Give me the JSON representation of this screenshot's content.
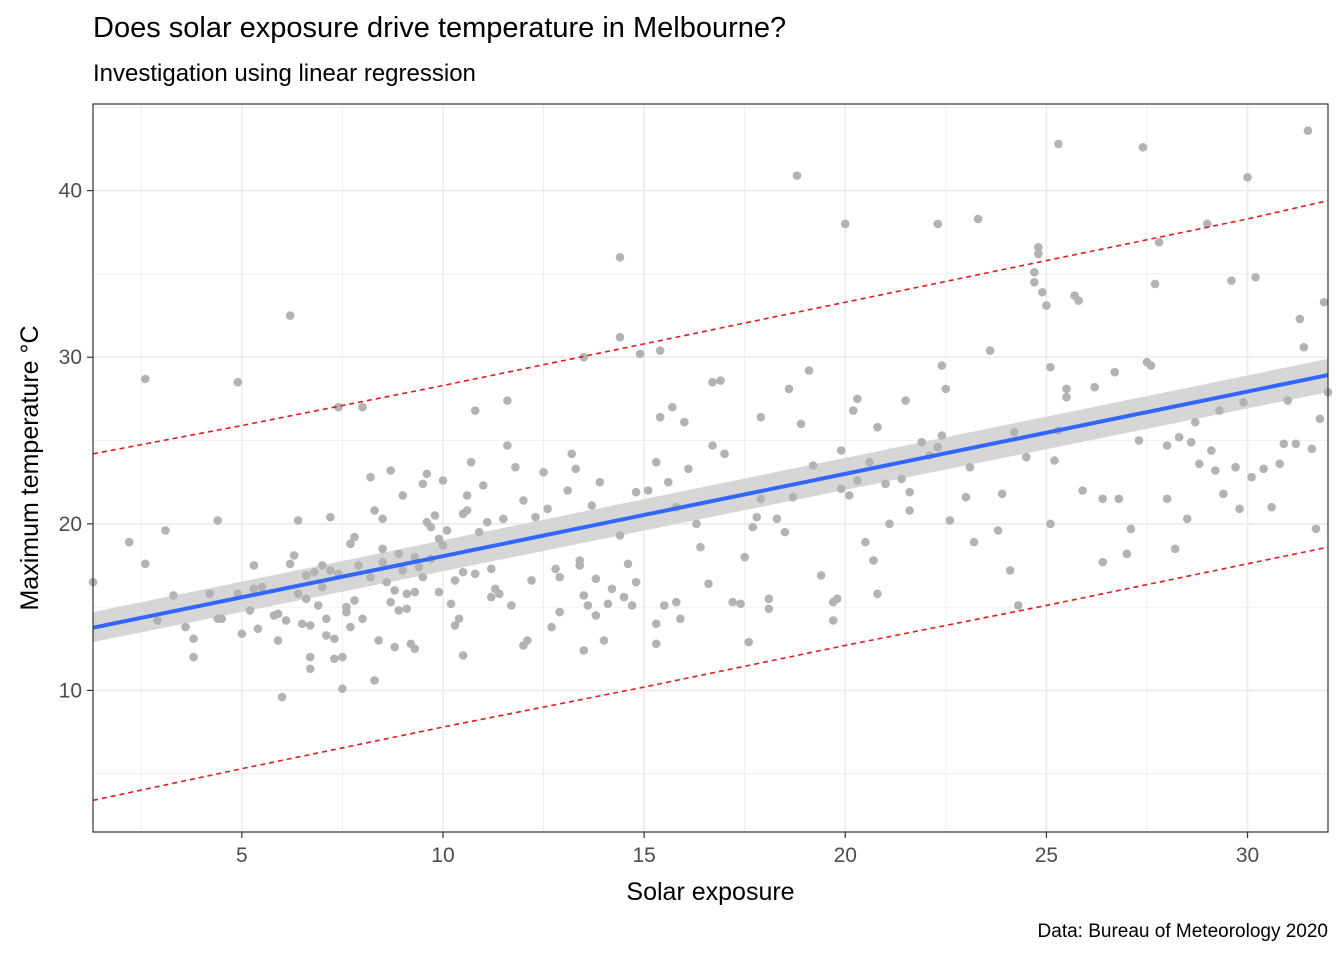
{
  "chart_data": {
    "type": "scatter",
    "title": "Does solar exposure drive temperature in Melbourne?",
    "subtitle": "Investigation using linear regression",
    "caption": "Data: Bureau of Meteorology 2020",
    "xlabel": "Solar exposure",
    "ylabel": "Maximum temperature °C",
    "xlim": [
      1.3,
      32.0
    ],
    "ylim": [
      1.5,
      45.2
    ],
    "xticks": [
      5,
      10,
      15,
      20,
      25,
      30
    ],
    "yticks": [
      10,
      20,
      30,
      40
    ],
    "grid": true,
    "colors": {
      "points": "#b3b3b3",
      "fit_line": "#3366ff",
      "confidence_band": "#d6d6d6",
      "prediction_interval": "#e41a1c",
      "grid": "#ebebeb",
      "panel_border": "#333333"
    },
    "regression": {
      "method": "linear",
      "intercept": 13.12,
      "slope": 0.494,
      "ci_at_xmin": [
        12.9,
        14.7
      ],
      "ci_at_xmax": [
        27.9,
        29.9
      ],
      "prediction_lower": [
        [
          1.3,
          3.4
        ],
        [
          5,
          5.3
        ],
        [
          10,
          7.8
        ],
        [
          15,
          10.2
        ],
        [
          20,
          12.7
        ],
        [
          25,
          15.1
        ],
        [
          30,
          17.6
        ],
        [
          32,
          18.6
        ]
      ],
      "prediction_upper": [
        [
          1.3,
          24.2
        ],
        [
          5,
          25.9
        ],
        [
          10,
          28.3
        ],
        [
          15,
          30.8
        ],
        [
          20,
          33.3
        ],
        [
          25,
          35.8
        ],
        [
          30,
          38.3
        ],
        [
          32,
          39.4
        ]
      ]
    },
    "points": [
      [
        1.3,
        16.5
      ],
      [
        2.2,
        18.9
      ],
      [
        2.6,
        17.6
      ],
      [
        2.6,
        28.7
      ],
      [
        2.9,
        14.2
      ],
      [
        3.1,
        19.6
      ],
      [
        3.3,
        15.7
      ],
      [
        3.6,
        13.8
      ],
      [
        3.8,
        13.1
      ],
      [
        3.8,
        12.0
      ],
      [
        4.2,
        15.8
      ],
      [
        4.4,
        20.2
      ],
      [
        4.5,
        14.3
      ],
      [
        4.9,
        15.8
      ],
      [
        4.9,
        28.5
      ],
      [
        5.0,
        13.4
      ],
      [
        5.2,
        14.8
      ],
      [
        5.3,
        16.1
      ],
      [
        5.3,
        17.5
      ],
      [
        5.4,
        13.7
      ],
      [
        5.5,
        16.2
      ],
      [
        5.8,
        14.5
      ],
      [
        5.9,
        13.0
      ],
      [
        5.9,
        14.6
      ],
      [
        6.0,
        9.6
      ],
      [
        6.1,
        14.2
      ],
      [
        6.2,
        17.6
      ],
      [
        6.2,
        32.5
      ],
      [
        6.3,
        18.1
      ],
      [
        6.4,
        20.2
      ],
      [
        6.4,
        15.8
      ],
      [
        6.5,
        14.0
      ],
      [
        6.6,
        16.9
      ],
      [
        6.6,
        15.5
      ],
      [
        6.7,
        11.3
      ],
      [
        6.7,
        13.9
      ],
      [
        6.8,
        17.1
      ],
      [
        6.9,
        15.1
      ],
      [
        7.0,
        17.5
      ],
      [
        7.0,
        16.2
      ],
      [
        7.1,
        13.3
      ],
      [
        7.1,
        14.3
      ],
      [
        7.2,
        20.4
      ],
      [
        7.2,
        17.2
      ],
      [
        7.3,
        11.9
      ],
      [
        7.3,
        13.1
      ],
      [
        7.4,
        17.0
      ],
      [
        7.5,
        12.0
      ],
      [
        7.5,
        10.1
      ],
      [
        7.6,
        15.0
      ],
      [
        7.6,
        14.7
      ],
      [
        7.7,
        18.8
      ],
      [
        7.7,
        13.8
      ],
      [
        7.8,
        15.4
      ],
      [
        7.8,
        19.2
      ],
      [
        7.9,
        17.5
      ],
      [
        8.0,
        14.3
      ],
      [
        8.0,
        27.0
      ],
      [
        8.2,
        22.8
      ],
      [
        8.2,
        16.8
      ],
      [
        8.3,
        20.8
      ],
      [
        8.3,
        10.6
      ],
      [
        8.4,
        13.0
      ],
      [
        8.5,
        18.5
      ],
      [
        8.5,
        17.7
      ],
      [
        8.6,
        16.5
      ],
      [
        8.7,
        23.2
      ],
      [
        8.7,
        15.3
      ],
      [
        8.8,
        16.0
      ],
      [
        8.8,
        12.6
      ],
      [
        8.9,
        18.2
      ],
      [
        8.9,
        14.8
      ],
      [
        9.0,
        21.7
      ],
      [
        9.0,
        17.2
      ],
      [
        9.1,
        15.8
      ],
      [
        9.1,
        14.9
      ],
      [
        9.2,
        12.8
      ],
      [
        9.3,
        12.5
      ],
      [
        9.3,
        18.0
      ],
      [
        9.4,
        17.4
      ],
      [
        9.5,
        16.8
      ],
      [
        9.5,
        22.4
      ],
      [
        9.6,
        20.1
      ],
      [
        9.6,
        23.0
      ],
      [
        9.7,
        17.9
      ],
      [
        9.7,
        19.8
      ],
      [
        9.8,
        20.5
      ],
      [
        9.9,
        15.9
      ],
      [
        10.0,
        22.6
      ],
      [
        10.0,
        18.7
      ],
      [
        10.1,
        19.6
      ],
      [
        10.2,
        15.2
      ],
      [
        10.3,
        16.6
      ],
      [
        10.3,
        13.9
      ],
      [
        10.4,
        14.3
      ],
      [
        10.5,
        12.1
      ],
      [
        10.5,
        17.1
      ],
      [
        10.6,
        21.7
      ],
      [
        10.6,
        20.8
      ],
      [
        10.7,
        23.7
      ],
      [
        10.8,
        17.0
      ],
      [
        10.8,
        26.8
      ],
      [
        10.9,
        19.5
      ],
      [
        11.0,
        22.3
      ],
      [
        11.1,
        20.1
      ],
      [
        11.2,
        15.6
      ],
      [
        11.3,
        16.1
      ],
      [
        11.4,
        15.8
      ],
      [
        11.5,
        20.3
      ],
      [
        11.6,
        24.7
      ],
      [
        11.6,
        27.4
      ],
      [
        11.7,
        15.1
      ],
      [
        11.8,
        23.4
      ],
      [
        12.0,
        12.7
      ],
      [
        12.1,
        13.0
      ],
      [
        12.2,
        16.6
      ],
      [
        12.3,
        20.4
      ],
      [
        12.5,
        23.1
      ],
      [
        12.6,
        20.9
      ],
      [
        12.7,
        13.8
      ],
      [
        12.8,
        17.3
      ],
      [
        12.9,
        14.7
      ],
      [
        13.1,
        22.0
      ],
      [
        13.2,
        24.2
      ],
      [
        13.3,
        23.3
      ],
      [
        13.4,
        17.5
      ],
      [
        13.4,
        17.8
      ],
      [
        13.5,
        15.7
      ],
      [
        13.5,
        12.4
      ],
      [
        13.5,
        30.0
      ],
      [
        13.6,
        15.1
      ],
      [
        13.7,
        21.1
      ],
      [
        13.8,
        14.5
      ],
      [
        13.8,
        16.7
      ],
      [
        14.0,
        13.0
      ],
      [
        14.1,
        15.2
      ],
      [
        14.2,
        16.1
      ],
      [
        14.4,
        19.3
      ],
      [
        14.4,
        31.2
      ],
      [
        14.5,
        15.6
      ],
      [
        14.6,
        17.6
      ],
      [
        14.7,
        15.1
      ],
      [
        14.8,
        16.5
      ],
      [
        14.8,
        21.9
      ],
      [
        14.9,
        30.2
      ],
      [
        15.1,
        22.0
      ],
      [
        15.3,
        12.8
      ],
      [
        15.3,
        14.0
      ],
      [
        15.4,
        30.4
      ],
      [
        15.4,
        26.4
      ],
      [
        15.5,
        15.1
      ],
      [
        15.6,
        22.5
      ],
      [
        15.7,
        27.0
      ],
      [
        15.8,
        21.0
      ],
      [
        15.9,
        14.3
      ],
      [
        16.0,
        26.1
      ],
      [
        16.4,
        18.6
      ],
      [
        16.6,
        16.4
      ],
      [
        16.7,
        28.5
      ],
      [
        16.7,
        24.7
      ],
      [
        16.9,
        28.6
      ],
      [
        17.0,
        24.2
      ],
      [
        17.2,
        15.3
      ],
      [
        17.4,
        15.2
      ],
      [
        17.5,
        18.0
      ],
      [
        17.7,
        19.8
      ],
      [
        17.8,
        20.4
      ],
      [
        17.9,
        26.4
      ],
      [
        17.9,
        21.5
      ],
      [
        18.1,
        14.9
      ],
      [
        18.1,
        15.5
      ],
      [
        18.3,
        20.3
      ],
      [
        18.5,
        19.5
      ],
      [
        18.7,
        21.6
      ],
      [
        18.9,
        26.0
      ],
      [
        19.1,
        29.2
      ],
      [
        19.2,
        23.5
      ],
      [
        19.7,
        15.3
      ],
      [
        19.7,
        14.2
      ],
      [
        19.8,
        15.5
      ],
      [
        19.9,
        22.1
      ],
      [
        19.9,
        24.4
      ],
      [
        20.1,
        21.7
      ],
      [
        20.2,
        26.8
      ],
      [
        20.3,
        27.5
      ],
      [
        20.3,
        22.6
      ],
      [
        20.5,
        18.9
      ],
      [
        20.6,
        23.7
      ],
      [
        20.7,
        17.8
      ],
      [
        20.8,
        15.8
      ],
      [
        20.8,
        25.8
      ],
      [
        21.0,
        22.4
      ],
      [
        21.1,
        20.0
      ],
      [
        21.4,
        22.7
      ],
      [
        21.5,
        27.4
      ],
      [
        21.6,
        21.9
      ],
      [
        21.6,
        20.8
      ],
      [
        22.1,
        24.1
      ],
      [
        22.3,
        24.6
      ],
      [
        22.4,
        25.3
      ],
      [
        22.4,
        29.5
      ],
      [
        22.5,
        28.1
      ],
      [
        22.6,
        20.2
      ],
      [
        23.0,
        21.6
      ],
      [
        23.1,
        23.4
      ],
      [
        23.2,
        18.9
      ],
      [
        23.3,
        38.3
      ],
      [
        23.6,
        30.4
      ],
      [
        23.8,
        19.6
      ],
      [
        23.9,
        21.8
      ],
      [
        24.1,
        17.2
      ],
      [
        24.3,
        15.1
      ],
      [
        24.5,
        24.0
      ],
      [
        24.7,
        34.5
      ],
      [
        24.7,
        35.1
      ],
      [
        24.8,
        36.6
      ],
      [
        24.8,
        36.2
      ],
      [
        24.9,
        33.9
      ],
      [
        25.0,
        33.1
      ],
      [
        25.1,
        29.4
      ],
      [
        25.1,
        20.0
      ],
      [
        25.2,
        23.8
      ],
      [
        25.3,
        25.6
      ],
      [
        25.5,
        27.6
      ],
      [
        25.5,
        28.1
      ],
      [
        25.7,
        33.7
      ],
      [
        25.8,
        33.4
      ],
      [
        25.9,
        22.0
      ],
      [
        26.2,
        28.2
      ],
      [
        26.4,
        21.5
      ],
      [
        26.7,
        29.1
      ],
      [
        26.8,
        21.5
      ],
      [
        27.0,
        18.2
      ],
      [
        27.1,
        19.7
      ],
      [
        27.3,
        25.0
      ],
      [
        27.4,
        42.6
      ],
      [
        27.5,
        29.7
      ],
      [
        27.6,
        29.5
      ],
      [
        27.7,
        34.4
      ],
      [
        27.8,
        36.9
      ],
      [
        28.0,
        24.7
      ],
      [
        28.0,
        21.5
      ],
      [
        28.2,
        18.5
      ],
      [
        28.3,
        25.2
      ],
      [
        28.5,
        20.3
      ],
      [
        28.6,
        24.9
      ],
      [
        28.8,
        23.6
      ],
      [
        29.0,
        38.0
      ],
      [
        29.1,
        24.4
      ],
      [
        29.2,
        23.2
      ],
      [
        29.3,
        26.8
      ],
      [
        29.4,
        21.8
      ],
      [
        29.6,
        34.6
      ],
      [
        29.7,
        23.4
      ],
      [
        29.8,
        20.9
      ],
      [
        29.9,
        27.3
      ],
      [
        30.0,
        40.8
      ],
      [
        30.1,
        22.8
      ],
      [
        30.2,
        34.8
      ],
      [
        30.4,
        23.3
      ],
      [
        30.6,
        21.0
      ],
      [
        30.8,
        23.6
      ],
      [
        31.0,
        27.4
      ],
      [
        31.2,
        24.8
      ],
      [
        31.3,
        32.3
      ],
      [
        31.4,
        30.6
      ],
      [
        31.5,
        43.6
      ],
      [
        31.6,
        24.5
      ],
      [
        31.7,
        19.7
      ],
      [
        31.8,
        26.3
      ],
      [
        31.9,
        33.3
      ],
      [
        32.0,
        27.9
      ],
      [
        4.4,
        14.3
      ],
      [
        6.7,
        12.0
      ],
      [
        9.3,
        15.9
      ],
      [
        11.2,
        17.3
      ],
      [
        12.9,
        16.8
      ],
      [
        15.8,
        15.3
      ],
      [
        17.6,
        12.9
      ],
      [
        19.4,
        16.9
      ],
      [
        21.9,
        24.9
      ],
      [
        24.2,
        25.5
      ],
      [
        26.4,
        17.7
      ],
      [
        28.7,
        26.1
      ],
      [
        30.9,
        24.8
      ],
      [
        10.5,
        20.6
      ],
      [
        13.9,
        22.5
      ],
      [
        16.3,
        20.0
      ],
      [
        18.6,
        28.1
      ],
      [
        20.0,
        38.0
      ],
      [
        22.3,
        38.0
      ],
      [
        25.3,
        42.8
      ],
      [
        18.8,
        40.9
      ],
      [
        14.4,
        36.0
      ],
      [
        7.4,
        27.0
      ],
      [
        8.5,
        20.3
      ],
      [
        9.9,
        19.1
      ],
      [
        12.0,
        21.4
      ],
      [
        15.3,
        23.7
      ],
      [
        16.1,
        23.3
      ]
    ]
  }
}
